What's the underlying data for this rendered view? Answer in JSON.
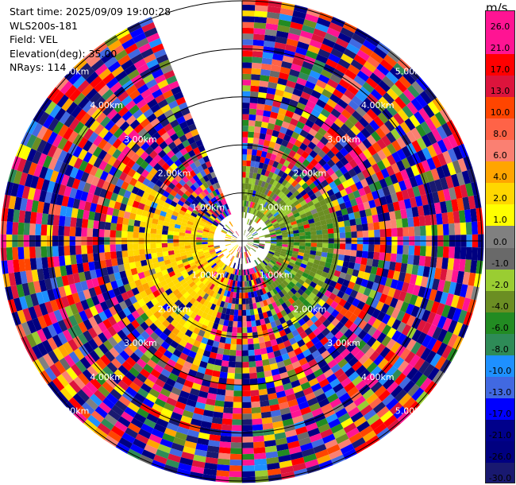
{
  "info": {
    "start_time": "Start time: 2025/09/09 19:00:28",
    "instrument": "WLS200s-181",
    "field": "Field: VEL",
    "elevation": "Elevation(deg): 35.00",
    "nrays": "NRays: 114"
  },
  "colorbar": {
    "title": "m/s",
    "labels": [
      "26.0",
      "21.0",
      "17.0",
      "13.0",
      "10.0",
      "8.0",
      "6.0",
      "4.0",
      "2.0",
      "1.0",
      "0.0",
      "-1.0",
      "-2.0",
      "-4.0",
      "-6.0",
      "-8.0",
      "-10.0",
      "-13.0",
      "-17.0",
      "-21.0",
      "-26.0",
      "-30.0"
    ],
    "colors": [
      "#ff1493",
      "#ff1493",
      "#ff0000",
      "#dc143c",
      "#ff4500",
      "#ff6347",
      "#fa8072",
      "#ffa500",
      "#ffd700",
      "#ffff00",
      "#808080",
      "#696969",
      "#9acd32",
      "#6b8e23",
      "#228b22",
      "#2e8b57",
      "#1e90ff",
      "#4169e1",
      "#0000ff",
      "#00008b",
      "#000080",
      "#191970"
    ]
  },
  "chart_data": {
    "type": "heatmap",
    "projection": "polar PPI",
    "field": "VEL",
    "units": "m/s",
    "range_rings_km": [
      1,
      2,
      3,
      4,
      5
    ],
    "ring_labels": [
      {
        "text": "1.00km",
        "quadrant": "NE"
      },
      {
        "text": "1.00km",
        "quadrant": "SE"
      },
      {
        "text": "1.00km",
        "quadrant": "SW"
      },
      {
        "text": "1.00km",
        "quadrant": "NW"
      },
      {
        "text": "2.00km",
        "quadrant": "NE"
      },
      {
        "text": "2.00km",
        "quadrant": "SE"
      },
      {
        "text": "2.00km",
        "quadrant": "SW"
      },
      {
        "text": "2.00km",
        "quadrant": "NW"
      },
      {
        "text": "3.00km",
        "quadrant": "NE"
      },
      {
        "text": "3.00km",
        "quadrant": "SE"
      },
      {
        "text": "3.00km",
        "quadrant": "SW"
      },
      {
        "text": "3.00km",
        "quadrant": "NW"
      },
      {
        "text": "4.00km",
        "quadrant": "NE"
      },
      {
        "text": "4.00km",
        "quadrant": "SE"
      },
      {
        "text": "4.00km",
        "quadrant": "SW"
      },
      {
        "text": "4.00km",
        "quadrant": "NW"
      },
      {
        "text": "5.00km",
        "quadrant": "NE"
      },
      {
        "text": "5.00km",
        "quadrant": "SE"
      },
      {
        "text": "5.00km",
        "quadrant": "SW"
      },
      {
        "text": "5.00km",
        "quadrant": "NW"
      }
    ],
    "max_range_km": 5,
    "n_rays": 114,
    "missing_sector_deg": [
      337,
      360
    ],
    "regions": [
      {
        "description": "near range west/southwest",
        "azimuth_deg": [
          200,
          300
        ],
        "range_km": [
          0,
          2.5
        ],
        "value_ms": 3
      },
      {
        "description": "near range east/southeast",
        "azimuth_deg": [
          60,
          150
        ],
        "range_km": [
          0,
          2.0
        ],
        "value_ms": -3
      },
      {
        "description": "near range north",
        "azimuth_deg": [
          0,
          60
        ],
        "range_km": [
          0,
          1.5
        ],
        "value_ms": -2
      }
    ],
    "outer_noise": "random values -30 to 26 m/s"
  }
}
